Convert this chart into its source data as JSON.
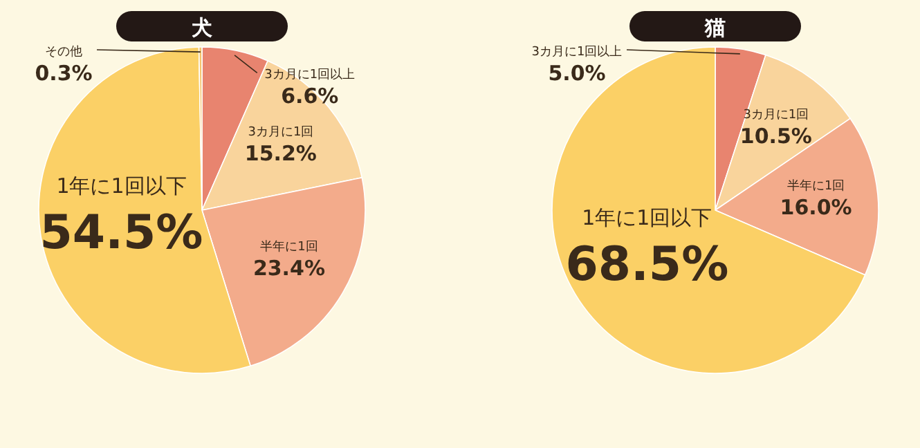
{
  "chart_data": [
    {
      "type": "pie",
      "title": "犬",
      "categories": [
        "3カ月に1回以上",
        "3カ月に1回",
        "半年に1回",
        "1年に1回以下",
        "その他"
      ],
      "values": [
        6.6,
        15.2,
        23.4,
        54.5,
        0.3
      ],
      "value_labels": [
        "6.6%",
        "15.2%",
        "23.4%",
        "54.5%",
        "0.3%"
      ],
      "colors": [
        "#e8846f",
        "#f9d49c",
        "#f3ab8b",
        "#fbd066",
        "#f5c46e"
      ]
    },
    {
      "type": "pie",
      "title": "猫",
      "categories": [
        "3カ月に1回以上",
        "3カ月に1回",
        "半年に1回",
        "1年に1回以下"
      ],
      "values": [
        5.0,
        10.5,
        16.0,
        68.5
      ],
      "value_labels": [
        "5.0%",
        "10.5%",
        "16.0%",
        "68.5%"
      ],
      "colors": [
        "#e8846f",
        "#f9d49c",
        "#f3ab8b",
        "#fbd066"
      ]
    }
  ]
}
